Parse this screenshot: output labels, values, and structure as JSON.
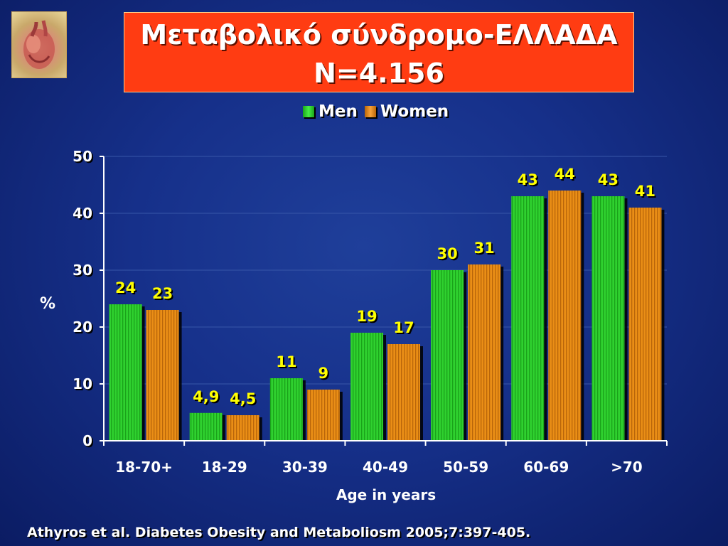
{
  "title": {
    "line1": "Μεταβολικό σύνδρομο-ΕΛΛΑΔΑ",
    "line2": "N=4.156"
  },
  "logo_icon": "heart-illustration-icon",
  "footer": {
    "citation": "Athyros et al. Diabetes Obesity and Metaboliosm 2005;7:397-405."
  },
  "colors": {
    "men": "#2fd12f",
    "women": "#e88a12",
    "title_bg": "#ff3c12",
    "value_label": "#ffff00"
  },
  "chart_data": {
    "type": "bar",
    "title": "",
    "xlabel": "Age in years",
    "ylabel": "%",
    "ylim": [
      0,
      50
    ],
    "yticks": [
      0,
      10,
      20,
      30,
      40,
      50
    ],
    "grid": true,
    "legend_position": "top",
    "categories": [
      "18-70+",
      "18-29",
      "30-39",
      "40-49",
      "50-59",
      "60-69",
      ">70"
    ],
    "series": [
      {
        "name": "Men",
        "values": [
          24,
          4.9,
          11,
          19,
          30,
          43,
          43
        ],
        "labels": [
          "24",
          "4,9",
          "11",
          "19",
          "30",
          "43",
          "43"
        ]
      },
      {
        "name": "Women",
        "values": [
          23,
          4.5,
          9,
          17,
          31,
          44,
          41
        ],
        "labels": [
          "23",
          "4,5",
          "9",
          "17",
          "31",
          "44",
          "41"
        ]
      }
    ]
  }
}
